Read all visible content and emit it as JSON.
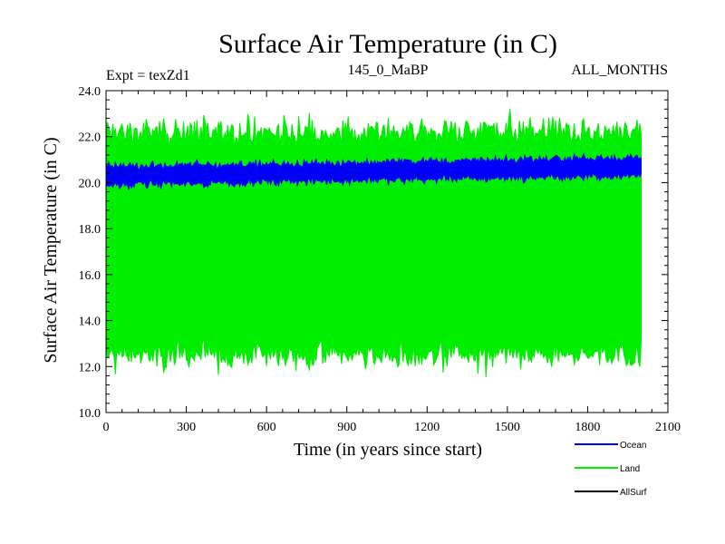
{
  "chart_data": {
    "type": "line",
    "title": "Surface Air Temperature (in C)",
    "subtitle_left": "Expt = texZd1",
    "subtitle_center": "145_0_MaBP",
    "subtitle_right": "ALL_MONTHS",
    "xlabel": "Time (in years since start)",
    "ylabel": "Surface Air Temperature (in C)",
    "xlim": [
      0,
      2100
    ],
    "ylim": [
      10.0,
      24.0
    ],
    "x_ticks": [
      0,
      300,
      600,
      900,
      1200,
      1500,
      1800,
      2100
    ],
    "x_tick_labels": [
      "0",
      "300",
      "600",
      "900",
      "1200",
      "1500",
      "1800",
      "2100"
    ],
    "y_ticks": [
      10,
      12,
      14,
      16,
      18,
      20,
      22,
      24
    ],
    "y_tick_labels": [
      "10.0",
      "12.0",
      "14.0",
      "16.0",
      "18.0",
      "20.0",
      "22.0",
      "24.0"
    ],
    "grid": false,
    "legend_position": "bottom-right",
    "series": [
      {
        "name": "Land",
        "color": "#00ee00",
        "x_range": [
          0,
          2000
        ],
        "band": {
          "lower_mean": 12.5,
          "upper_mean": 22.2,
          "noise": 0.35
        },
        "note": "seasonal cycle fills band approx 12 to 22.5 C"
      },
      {
        "name": "Ocean",
        "color": "#0000ff",
        "x_range": [
          0,
          2000
        ],
        "band_start": {
          "lower": 19.9,
          "upper": 20.7
        },
        "band_end": {
          "lower": 20.3,
          "upper": 21.1
        },
        "noise": 0.12
      },
      {
        "name": "AllSurf",
        "color": "#000000",
        "x_range": [
          0,
          2000
        ],
        "note": "hidden beneath other series"
      }
    ],
    "legend": [
      {
        "label": "Ocean",
        "color": "#0000ff"
      },
      {
        "label": "Land",
        "color": "#00ee00"
      },
      {
        "label": "AllSurf",
        "color": "#000000"
      }
    ]
  }
}
